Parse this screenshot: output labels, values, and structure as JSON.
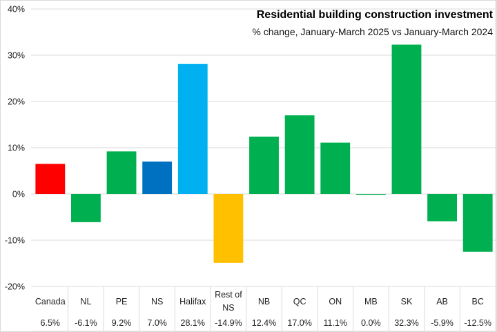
{
  "chart_data": {
    "type": "bar",
    "title": "Residential building construction investment",
    "subtitle": "% change, January-March 2025 vs January-March 2024",
    "xlabel": "",
    "ylabel": "",
    "ylim": [
      -20,
      40
    ],
    "yticks": [
      40,
      30,
      20,
      10,
      0,
      -10,
      -20
    ],
    "ytick_labels": [
      "40%",
      "30%",
      "20%",
      "10%",
      "0%",
      "-10%",
      "-20%"
    ],
    "grid": true,
    "legend": "none",
    "categories": [
      "Canada",
      "NL",
      "PE",
      "NS",
      "Halifax",
      "Rest of NS",
      "NB",
      "QC",
      "ON",
      "MB",
      "SK",
      "AB",
      "BC"
    ],
    "category_lines": [
      [
        "Canada"
      ],
      [
        "NL"
      ],
      [
        "PE"
      ],
      [
        "NS"
      ],
      [
        "Halifax"
      ],
      [
        "Rest of",
        "NS"
      ],
      [
        "NB"
      ],
      [
        "QC"
      ],
      [
        "ON"
      ],
      [
        "MB"
      ],
      [
        "SK"
      ],
      [
        "AB"
      ],
      [
        "BC"
      ]
    ],
    "values": [
      6.5,
      -6.1,
      9.2,
      7.0,
      28.1,
      -14.9,
      12.4,
      17.0,
      11.1,
      0.0,
      32.3,
      -5.9,
      -12.5
    ],
    "data_table_labels": [
      "6.5%",
      "-6.1%",
      "9.2%",
      "7.0%",
      "28.1%",
      "-14.9%",
      "12.4%",
      "17.0%",
      "11.1%",
      "0.0%",
      "32.3%",
      "-5.9%",
      "-12.5%"
    ],
    "colors": [
      "#FF0000",
      "#00B050",
      "#00B050",
      "#0070C0",
      "#00B0F0",
      "#FFC000",
      "#00B050",
      "#00B050",
      "#00B050",
      "#00B050",
      "#00B050",
      "#00B050",
      "#00B050"
    ]
  }
}
